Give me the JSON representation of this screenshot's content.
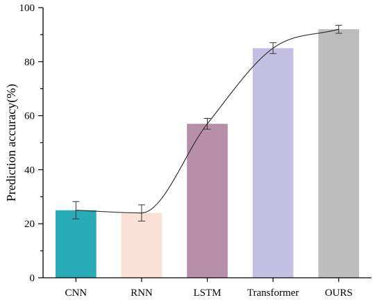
{
  "chart_data": {
    "type": "bar",
    "title": "",
    "xlabel": "",
    "ylabel": "Prediction accuracy(%)",
    "ylim": [
      0,
      100
    ],
    "yticks": [
      0,
      20,
      40,
      60,
      80,
      100
    ],
    "categories": [
      "CNN",
      "RNN",
      "LSTM",
      "Transformer",
      "OURS"
    ],
    "values": [
      25,
      24,
      57,
      85,
      92
    ],
    "errors": [
      3.2,
      3.0,
      2.0,
      2.0,
      1.5
    ],
    "colors": [
      "#2aabb8",
      "#fbe0d6",
      "#b88fa8",
      "#c3c0e4",
      "#bdbdbd"
    ],
    "trend_line": true,
    "grid": false,
    "legend": "none"
  }
}
